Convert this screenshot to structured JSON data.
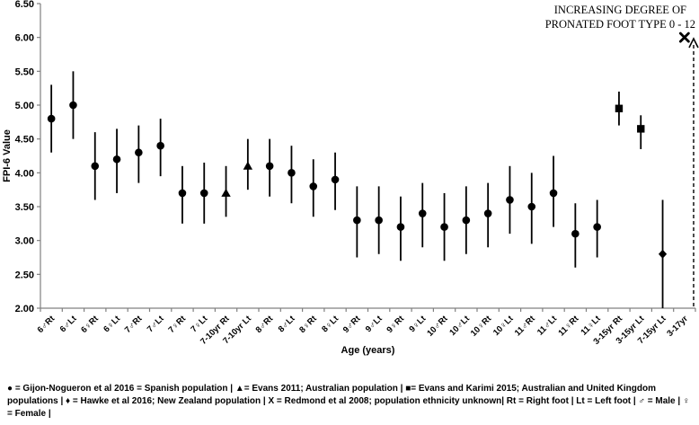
{
  "chart_data": {
    "type": "scatter",
    "title": "",
    "xlabel": "Age (years)",
    "ylabel": "FPI-6 Value",
    "ylim": [
      2.0,
      6.5
    ],
    "ytick_step": 0.5,
    "grid": false,
    "legend_position": "bottom",
    "annotation": {
      "lines": [
        "INCREASING DEGREE OF",
        "PRONATED FOOT TYPE 0 - 12"
      ],
      "style": "dashed-vertical-line-with-up-arrow"
    },
    "series": [
      {
        "marker": "circle",
        "study": "Gijon-Nogueron et al 2016",
        "population": "Spanish population"
      },
      {
        "marker": "triangle",
        "study": "Evans 2011",
        "population": "Australian population"
      },
      {
        "marker": "square",
        "study": "Evans and Karimi 2015",
        "population": "Australian and United Kingdom populations"
      },
      {
        "marker": "diamond",
        "study": "Hawke et al 2016",
        "population": "New Zealand population"
      },
      {
        "marker": "x",
        "study": "Redmond et al 2008",
        "population": "population ethnicity unknown"
      }
    ],
    "abbreviations": {
      "Rt": "Right foot",
      "Lt": "Left foot",
      "♂": "Male",
      "♀": "Female"
    },
    "points": [
      {
        "label": "6♂Rt",
        "marker": "circle",
        "value": 4.8,
        "lo": 4.3,
        "hi": 5.3
      },
      {
        "label": "6♂Lt",
        "marker": "circle",
        "value": 5.0,
        "lo": 4.5,
        "hi": 5.5
      },
      {
        "label": "6♀Rt",
        "marker": "circle",
        "value": 4.1,
        "lo": 3.6,
        "hi": 4.6
      },
      {
        "label": "6♀Lt",
        "marker": "circle",
        "value": 4.2,
        "lo": 3.7,
        "hi": 4.65
      },
      {
        "label": "7♂Rt",
        "marker": "circle",
        "value": 4.3,
        "lo": 3.85,
        "hi": 4.7
      },
      {
        "label": "7♂Lt",
        "marker": "circle",
        "value": 4.4,
        "lo": 3.95,
        "hi": 4.8
      },
      {
        "label": "7♀Rt",
        "marker": "circle",
        "value": 3.7,
        "lo": 3.25,
        "hi": 4.1
      },
      {
        "label": "7♀Lt",
        "marker": "circle",
        "value": 3.7,
        "lo": 3.25,
        "hi": 4.15
      },
      {
        "label": "7-10yr Rt",
        "marker": "triangle",
        "value": 3.7,
        "lo": 3.35,
        "hi": 4.1
      },
      {
        "label": "7-10yr Lt",
        "marker": "triangle",
        "value": 4.1,
        "lo": 3.75,
        "hi": 4.5
      },
      {
        "label": "8♂Rt",
        "marker": "circle",
        "value": 4.1,
        "lo": 3.65,
        "hi": 4.5
      },
      {
        "label": "8♂Lt",
        "marker": "circle",
        "value": 4.0,
        "lo": 3.55,
        "hi": 4.4
      },
      {
        "label": "8♀Rt",
        "marker": "circle",
        "value": 3.8,
        "lo": 3.35,
        "hi": 4.2
      },
      {
        "label": "8♀Lt",
        "marker": "circle",
        "value": 3.9,
        "lo": 3.45,
        "hi": 4.3
      },
      {
        "label": "9♂Rt",
        "marker": "circle",
        "value": 3.3,
        "lo": 2.75,
        "hi": 3.8
      },
      {
        "label": "9♂Lt",
        "marker": "circle",
        "value": 3.3,
        "lo": 2.8,
        "hi": 3.8
      },
      {
        "label": "9♀Rt",
        "marker": "circle",
        "value": 3.2,
        "lo": 2.7,
        "hi": 3.65
      },
      {
        "label": "9♀Lt",
        "marker": "circle",
        "value": 3.4,
        "lo": 2.9,
        "hi": 3.85
      },
      {
        "label": "10♂Rt",
        "marker": "circle",
        "value": 3.2,
        "lo": 2.7,
        "hi": 3.7
      },
      {
        "label": "10♂Lt",
        "marker": "circle",
        "value": 3.3,
        "lo": 2.8,
        "hi": 3.8
      },
      {
        "label": "10♀Rt",
        "marker": "circle",
        "value": 3.4,
        "lo": 2.9,
        "hi": 3.85
      },
      {
        "label": "10♀Lt",
        "marker": "circle",
        "value": 3.6,
        "lo": 3.1,
        "hi": 4.1
      },
      {
        "label": "11♂Rt",
        "marker": "circle",
        "value": 3.5,
        "lo": 2.95,
        "hi": 4.0
      },
      {
        "label": "11♂Lt",
        "marker": "circle",
        "value": 3.7,
        "lo": 3.2,
        "hi": 4.25
      },
      {
        "label": "11♀Rt",
        "marker": "circle",
        "value": 3.1,
        "lo": 2.6,
        "hi": 3.55
      },
      {
        "label": "11♀Lt",
        "marker": "circle",
        "value": 3.2,
        "lo": 2.75,
        "hi": 3.6
      },
      {
        "label": "3-15yr Rt",
        "marker": "square",
        "value": 4.95,
        "lo": 4.7,
        "hi": 5.2
      },
      {
        "label": "3-15yr Lt",
        "marker": "square",
        "value": 4.65,
        "lo": 4.35,
        "hi": 4.85
      },
      {
        "label": "7-15yr Lt",
        "marker": "diamond",
        "value": 2.8,
        "lo": 2.0,
        "hi": 3.6
      },
      {
        "label": "3-17yr",
        "marker": "x",
        "value": 6.0,
        "lo": null,
        "hi": null
      }
    ]
  },
  "legend": {
    "text": "● = Gijon-Nogueron et al 2016 = Spanish population | ▲= Evans 2011; Australian population | ■= Evans and Karimi 2015; Australian and United Kingdom populations | ♦ = Hawke et al 2016; New Zealand population | X = Redmond et al 2008; population ethnicity unknown| Rt = Right foot | Lt = Left foot | ♂ = Male | ♀ = Female |"
  }
}
